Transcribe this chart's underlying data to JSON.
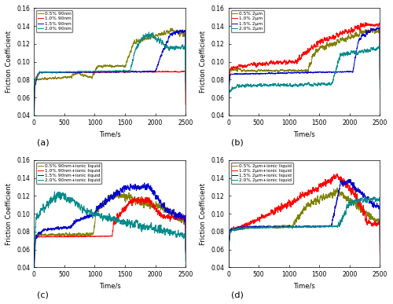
{
  "subplot_labels": [
    "(a)",
    "(b)",
    "(c)",
    "(d)"
  ],
  "xlim": [
    0,
    2500
  ],
  "ylim": [
    0.04,
    0.16
  ],
  "yticks": [
    0.04,
    0.06,
    0.08,
    0.1,
    0.12,
    0.14,
    0.16
  ],
  "xticks": [
    0,
    500,
    1000,
    1500,
    2000,
    2500
  ],
  "xlabel": "Time/s",
  "ylabel": "Friction Coefficient",
  "legends_a": [
    "0.5% 90nm",
    "1.0% 90nm",
    "1.5% 90nm",
    "2.0% 90nm"
  ],
  "legends_b": [
    "0.5% 2μm",
    "1.0% 2μm",
    "1.5% 2μm",
    "2.0% 2μm"
  ],
  "legends_c": [
    "0.5% 90nm+ionic liquid",
    "1.0% 90nm+ionic liquid",
    "1.5% 90nm+ionic liquid",
    "2.0% 90nm+ionic liquid"
  ],
  "legends_d": [
    "0.5% 2μm+ionic liquid",
    "1.0% 2μm+ionic liquid",
    "1.5% 2μm+ionic liquid",
    "2.0% 2μm+ionic liquid"
  ],
  "colors": [
    "#808000",
    "#FF0000",
    "#0000CD",
    "#008B8B"
  ],
  "figsize": [
    5.0,
    3.87
  ],
  "dpi": 100
}
